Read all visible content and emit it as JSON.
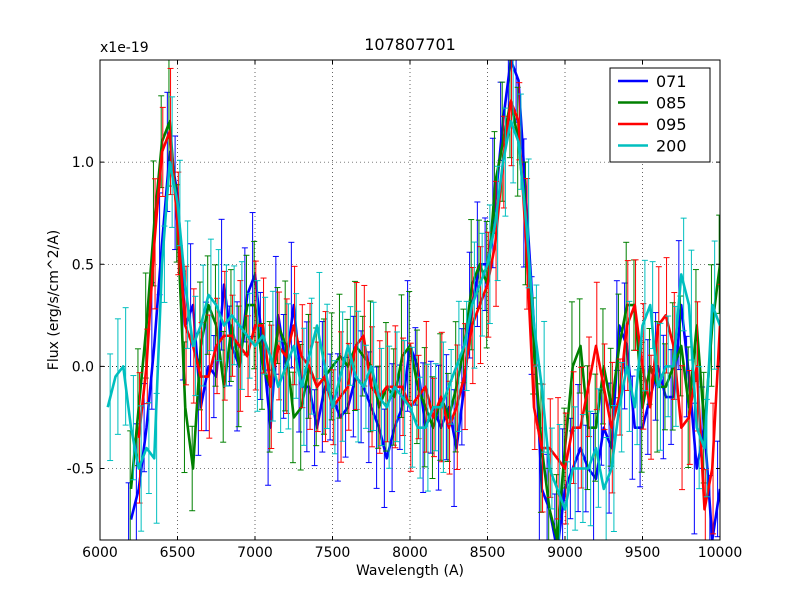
{
  "chart_data": {
    "type": "line",
    "title": "107807701",
    "xlabel": "Wavelength (A)",
    "ylabel": "Flux (erg/s/cm^2/A)",
    "y_multiplier": "x1e-19",
    "xlim": [
      6000,
      10000
    ],
    "ylim": [
      -0.85,
      1.5
    ],
    "grid": true,
    "legend_position": "top-right",
    "x_ticks": [
      6000,
      6500,
      7000,
      7500,
      8000,
      8500,
      9000,
      9500,
      10000
    ],
    "x_tick_labels": [
      "6000",
      "6500",
      "7000",
      "7500",
      "8000",
      "8500",
      "9000",
      "9500",
      "10000"
    ],
    "y_ticks": [
      -0.5,
      0.0,
      0.5,
      1.0
    ],
    "y_tick_labels": [
      "-0.5",
      "0.0",
      "0.5",
      "1.0"
    ],
    "series": [
      {
        "name": "071",
        "color": "#0000ff",
        "x": [
          6200,
          6250,
          6300,
          6350,
          6400,
          6450,
          6500,
          6550,
          6600,
          6650,
          6700,
          6750,
          6800,
          6850,
          6900,
          6950,
          7000,
          7050,
          7100,
          7150,
          7200,
          7250,
          7300,
          7350,
          7400,
          7450,
          7500,
          7550,
          7600,
          7650,
          7700,
          7750,
          7800,
          7850,
          7900,
          7950,
          8000,
          8050,
          8100,
          8150,
          8200,
          8250,
          8300,
          8350,
          8400,
          8450,
          8500,
          8550,
          8600,
          8650,
          8700,
          8750,
          8800,
          8850,
          8900,
          8950,
          9000,
          9050,
          9100,
          9150,
          9200,
          9250,
          9300,
          9350,
          9400,
          9450,
          9500,
          9550,
          9600,
          9650,
          9700,
          9750,
          9800,
          9850,
          9900,
          9950,
          10000
        ],
        "y": [
          -0.75,
          -0.6,
          -0.3,
          0.1,
          0.6,
          1.05,
          0.85,
          0.2,
          0.3,
          -0.2,
          0.0,
          -0.05,
          0.4,
          0.1,
          0.0,
          0.35,
          0.45,
          0.1,
          -0.3,
          0.25,
          0.0,
          0.3,
          -0.1,
          -0.1,
          -0.3,
          -0.1,
          -0.15,
          -0.25,
          -0.2,
          -0.05,
          -0.1,
          -0.2,
          -0.3,
          -0.45,
          -0.3,
          -0.2,
          0.1,
          0.0,
          -0.3,
          -0.2,
          -0.3,
          -0.2,
          -0.4,
          -0.1,
          0.3,
          0.5,
          0.5,
          0.8,
          1.2,
          1.5,
          1.4,
          0.8,
          0.2,
          -0.6,
          -0.7,
          -0.9,
          -0.6,
          -0.5,
          -0.4,
          -0.5,
          -0.55,
          -0.3,
          -0.4,
          0.2,
          0.1,
          -0.3,
          -0.3,
          -0.15,
          0.0,
          -0.15,
          -0.15,
          0.3,
          -0.05,
          -0.5,
          -0.3,
          -0.85,
          -0.6
        ]
      },
      {
        "name": "085",
        "color": "#008000",
        "x": [
          6200,
          6250,
          6300,
          6350,
          6400,
          6450,
          6500,
          6550,
          6600,
          6650,
          6700,
          6750,
          6800,
          6850,
          6900,
          6950,
          7000,
          7050,
          7100,
          7150,
          7200,
          7250,
          7300,
          7350,
          7400,
          7450,
          7500,
          7550,
          7600,
          7650,
          7700,
          7750,
          7800,
          7850,
          7900,
          7950,
          8000,
          8050,
          8100,
          8150,
          8200,
          8250,
          8300,
          8350,
          8400,
          8450,
          8500,
          8550,
          8600,
          8650,
          8700,
          8750,
          8800,
          8850,
          8900,
          8950,
          9000,
          9050,
          9100,
          9150,
          9200,
          9250,
          9300,
          9350,
          9400,
          9450,
          9500,
          9550,
          9600,
          9650,
          9700,
          9750,
          9800,
          9850,
          9900,
          9950,
          10000
        ],
        "y": [
          -0.6,
          -0.2,
          0.2,
          0.7,
          1.1,
          1.2,
          0.7,
          -0.2,
          -0.5,
          0.1,
          0.3,
          0.2,
          -0.1,
          0.2,
          0.0,
          0.3,
          0.3,
          0.0,
          -0.1,
          0.2,
          0.1,
          -0.25,
          -0.2,
          0.0,
          -0.1,
          -0.05,
          0.0,
          0.05,
          0.0,
          0.1,
          0.05,
          0.0,
          -0.2,
          -0.1,
          -0.15,
          0.05,
          0.1,
          -0.1,
          -0.2,
          -0.3,
          -0.15,
          -0.25,
          -0.1,
          0.1,
          0.4,
          0.5,
          0.4,
          0.9,
          1.1,
          1.3,
          1.1,
          0.7,
          0.1,
          -0.4,
          -0.7,
          -0.85,
          -0.4,
          0.0,
          0.1,
          -0.3,
          -0.3,
          0.0,
          -0.2,
          0.1,
          0.3,
          0.3,
          -0.2,
          0.0,
          -0.1,
          -0.1,
          0.0,
          0.1,
          -0.2,
          0.2,
          -0.3,
          0.2,
          0.5
        ]
      },
      {
        "name": "095",
        "color": "#ff0000",
        "x": [
          6250,
          6300,
          6350,
          6400,
          6450,
          6500,
          6550,
          6600,
          6650,
          6700,
          6750,
          6800,
          6850,
          6900,
          6950,
          7000,
          7050,
          7100,
          7150,
          7200,
          7250,
          7300,
          7350,
          7400,
          7450,
          7500,
          7550,
          7600,
          7650,
          7700,
          7750,
          7800,
          7850,
          7900,
          7950,
          8000,
          8050,
          8100,
          8150,
          8200,
          8250,
          8300,
          8350,
          8400,
          8450,
          8500,
          8550,
          8600,
          8650,
          8700,
          8750,
          8800,
          8850,
          8900,
          8950,
          9000,
          9050,
          9100,
          9150,
          9200,
          9250,
          9300,
          9350,
          9400,
          9450,
          9500,
          9550,
          9600,
          9650,
          9700,
          9750,
          9800,
          9850,
          9900,
          9950,
          10000
        ],
        "y": [
          -0.35,
          0.0,
          0.6,
          1.05,
          1.15,
          0.7,
          0.2,
          0.1,
          -0.05,
          -0.05,
          0.1,
          0.15,
          0.15,
          0.1,
          0.05,
          0.2,
          0.2,
          -0.1,
          0.1,
          0.05,
          0.2,
          0.05,
          0.0,
          -0.1,
          -0.05,
          -0.2,
          -0.15,
          -0.1,
          0.1,
          0.15,
          -0.1,
          -0.15,
          -0.1,
          -0.1,
          -0.1,
          -0.2,
          -0.15,
          -0.1,
          -0.25,
          -0.15,
          -0.3,
          -0.2,
          -0.05,
          0.2,
          0.3,
          0.4,
          0.6,
          1.0,
          1.3,
          1.2,
          0.6,
          -0.2,
          -0.4,
          -0.4,
          -0.45,
          -0.5,
          -0.3,
          -0.3,
          -0.1,
          0.1,
          -0.1,
          -0.3,
          -0.15,
          0.2,
          0.3,
          0.0,
          -0.2,
          0.2,
          0.25,
          0.1,
          -0.3,
          -0.25,
          0.0,
          -0.7,
          -0.5,
          0.2
        ]
      },
      {
        "name": "200",
        "color": "#00bfbf",
        "x": [
          6050,
          6100,
          6150,
          6200,
          6250,
          6300,
          6350,
          6400,
          6450,
          6500,
          6550,
          6600,
          6650,
          6700,
          6750,
          6800,
          6850,
          6900,
          6950,
          7000,
          7050,
          7100,
          7150,
          7200,
          7250,
          7300,
          7350,
          7400,
          7450,
          7500,
          7550,
          7600,
          7650,
          7700,
          7750,
          7800,
          7850,
          7900,
          7950,
          8000,
          8050,
          8100,
          8150,
          8200,
          8250,
          8300,
          8350,
          8400,
          8450,
          8500,
          8550,
          8600,
          8650,
          8700,
          8750,
          8800,
          8850,
          8900,
          8950,
          9000,
          9050,
          9100,
          9150,
          9200,
          9250,
          9300,
          9350,
          9400,
          9450,
          9500,
          9550,
          9600,
          9650,
          9700,
          9750,
          9800,
          9850,
          9900,
          9950,
          10000
        ],
        "y": [
          -0.2,
          -0.05,
          0.0,
          -0.3,
          -0.5,
          -0.4,
          -0.45,
          0.5,
          1.0,
          0.8,
          0.4,
          0.1,
          0.2,
          0.35,
          0.3,
          0.2,
          0.25,
          0.2,
          0.15,
          0.1,
          0.15,
          0.05,
          -0.1,
          0.0,
          0.1,
          -0.1,
          0.05,
          0.2,
          0.0,
          -0.2,
          -0.05,
          0.1,
          -0.05,
          -0.1,
          0.0,
          -0.15,
          -0.2,
          -0.1,
          -0.15,
          -0.2,
          -0.3,
          -0.3,
          -0.2,
          -0.2,
          -0.1,
          0.0,
          0.1,
          0.3,
          0.4,
          0.5,
          0.7,
          1.0,
          1.2,
          1.1,
          0.7,
          0.2,
          -0.1,
          -0.5,
          -0.6,
          -0.7,
          -0.5,
          -0.5,
          -0.5,
          -0.4,
          -0.6,
          -0.5,
          -0.2,
          0.0,
          -0.2,
          0.2,
          0.3,
          -0.1,
          0.0,
          0.0,
          0.45,
          0.3,
          -0.3,
          -0.4,
          0.3,
          0.2
        ]
      }
    ]
  }
}
